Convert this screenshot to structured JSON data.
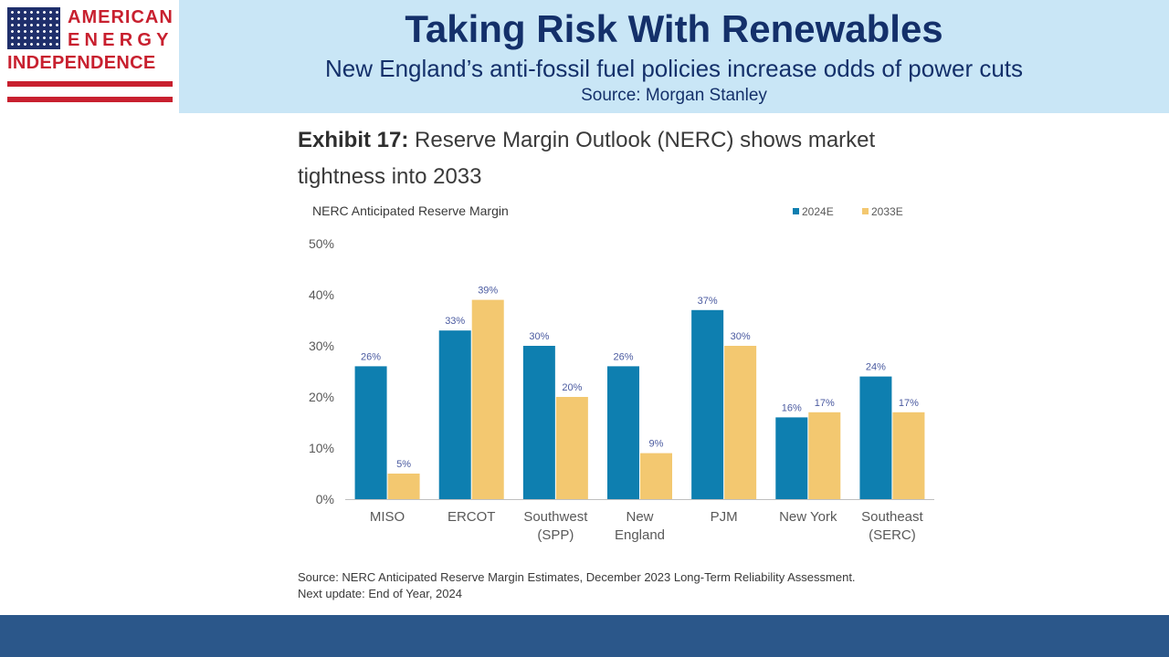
{
  "logo": {
    "line1": "AMERICAN",
    "line2": "ENERGY",
    "line3": "INDEPENDENCE",
    "flag_icon": "us-flag-icon",
    "colors": {
      "red": "#c8202f",
      "navy": "#1f2f6b"
    }
  },
  "banner": {
    "title": "Taking Risk With Renewables",
    "subtitle": "New England’s anti-fossil fuel policies increase odds of power cuts",
    "source": "Source: Morgan Stanley"
  },
  "exhibit": {
    "label": "Exhibit 17:",
    "text": "Reserve Margin Outlook (NERC) shows market tightness into 2033"
  },
  "chart_data": {
    "type": "bar",
    "title": "NERC Anticipated Reserve Margin",
    "categories": [
      [
        "MISO"
      ],
      [
        "ERCOT"
      ],
      [
        "Southwest",
        "(SPP)"
      ],
      [
        "New",
        "England"
      ],
      [
        "PJM"
      ],
      [
        "New York"
      ],
      [
        "Southeast",
        "(SERC)"
      ]
    ],
    "series": [
      {
        "name": "2024E",
        "color": "#0e7fb0",
        "values": [
          26,
          33,
          30,
          26,
          37,
          16,
          24
        ],
        "labels": [
          "26%",
          "33%",
          "30%",
          "26%",
          "37%",
          "16%",
          "24%"
        ]
      },
      {
        "name": "2033E",
        "color": "#f3c870",
        "values": [
          5,
          39,
          20,
          9,
          30,
          17,
          17
        ],
        "labels": [
          "5%",
          "39%",
          "20%",
          "9%",
          "30%",
          "17%",
          "17%"
        ]
      }
    ],
    "y_ticks": [
      "0%",
      "10%",
      "20%",
      "30%",
      "40%",
      "50%"
    ],
    "ylim": [
      0,
      50
    ],
    "grid": false,
    "legend": "top-right"
  },
  "source_note": {
    "line1": "Source: NERC Anticipated Reserve Margin Estimates, December 2023 Long-Term Reliability Assessment.",
    "line2": "Next update: End of Year, 2024"
  },
  "theme": {
    "banner_bg": "#c9e6f6",
    "banner_text": "#14306a",
    "footer_bg": "#2b578a"
  }
}
